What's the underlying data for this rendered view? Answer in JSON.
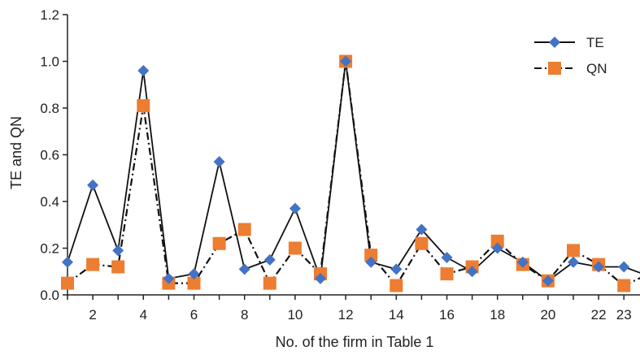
{
  "chart_data": {
    "type": "line",
    "title": "",
    "xlabel": "No. of the firm in Table 1",
    "ylabel": "TE and QN",
    "ylim": [
      0,
      1.2
    ],
    "yticks": [
      "0.0",
      "0.2",
      "0.4",
      "0.6",
      "0.8",
      "1.0",
      "1.2"
    ],
    "xlim": [
      1,
      24
    ],
    "xticks": [
      "2",
      "4",
      "6",
      "8",
      "10",
      "12",
      "14",
      "16",
      "18",
      "20",
      "22",
      "23"
    ],
    "x": [
      1,
      2,
      3,
      4,
      5,
      6,
      7,
      8,
      9,
      10,
      11,
      12,
      13,
      14,
      15,
      16,
      17,
      18,
      19,
      20,
      21,
      22,
      23,
      24
    ],
    "grid": false,
    "legend_position": "top-right",
    "series": [
      {
        "name": "TE",
        "color": "#4472c4",
        "line_style": "solid",
        "marker": "diamond",
        "values": [
          0.14,
          0.47,
          0.19,
          0.96,
          0.07,
          0.09,
          0.57,
          0.11,
          0.15,
          0.37,
          0.07,
          1.0,
          0.14,
          0.11,
          0.28,
          0.16,
          0.1,
          0.2,
          0.14,
          0.06,
          0.14,
          0.12,
          0.12,
          0.08
        ]
      },
      {
        "name": "QN",
        "color": "#ed7d31",
        "line_style": "dash-dot",
        "marker": "square",
        "values": [
          0.05,
          0.13,
          0.12,
          0.81,
          0.05,
          0.05,
          0.22,
          0.28,
          0.05,
          0.2,
          0.09,
          1.0,
          0.17,
          0.04,
          0.22,
          0.09,
          0.12,
          0.23,
          0.13,
          0.06,
          0.19,
          0.13,
          0.04,
          0.09
        ]
      }
    ]
  }
}
